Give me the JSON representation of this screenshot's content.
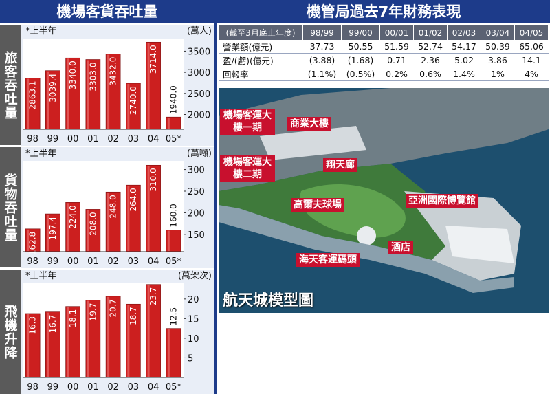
{
  "left_title": "機場客貨吞吐量",
  "right_title": "機管局過去7年財務表現",
  "chart_data": [
    {
      "type": "bar",
      "side_label": "旅客吞吐量",
      "note": "*上半年",
      "unit": "(萬人)",
      "categories": [
        "98",
        "99",
        "00",
        "01",
        "02",
        "03",
        "04",
        "05*"
      ],
      "values": [
        2863.1,
        3039.4,
        3340.0,
        3303.0,
        3432.0,
        2740.0,
        3714.0,
        1940.0
      ],
      "labels": [
        "2863.1",
        "3039.4",
        "3340.0",
        "3303.0",
        "3432.0",
        "2740.0",
        "3714.0",
        "1940.0"
      ],
      "yticks": [
        2000,
        2500,
        3000,
        3500
      ],
      "ylim": [
        1650,
        3800
      ],
      "xlabel": "",
      "ylabel": ""
    },
    {
      "type": "bar",
      "side_label": "貨物吞吐量",
      "note": "*上半年",
      "unit": "(萬噸)",
      "categories": [
        "98",
        "99",
        "00",
        "01",
        "02",
        "03",
        "04",
        "05*"
      ],
      "values": [
        162.8,
        197.4,
        224.0,
        208.0,
        248.0,
        264.0,
        310.0,
        160.0
      ],
      "labels": [
        "162.8",
        "197.4",
        "224.0",
        "208.0",
        "248.0",
        "264.0",
        "310.0",
        "160.0"
      ],
      "yticks": [
        150,
        200,
        250,
        300
      ],
      "ylim": [
        110,
        320
      ],
      "xlabel": "",
      "ylabel": ""
    },
    {
      "type": "bar",
      "side_label": "飛機升降",
      "note": "*上半年",
      "unit": "(萬架次)",
      "categories": [
        "98",
        "99",
        "00",
        "01",
        "02",
        "03",
        "04",
        "05*"
      ],
      "values": [
        16.3,
        16.7,
        18.1,
        19.7,
        20.7,
        18.7,
        23.7,
        12.5
      ],
      "labels": [
        "16.3",
        "16.7",
        "18.1",
        "19.7",
        "20.7",
        "18.7",
        "23.7",
        "12.5"
      ],
      "yticks": [
        5,
        10,
        15,
        20
      ],
      "ylim": [
        0,
        24
      ],
      "xlabel": "",
      "ylabel": ""
    }
  ],
  "finance_table": {
    "headers": [
      "(截至3月底止年度)",
      "98/99",
      "99/00",
      "00/01",
      "01/02",
      "02/03",
      "03/04",
      "04/05"
    ],
    "rows": [
      [
        "營業額(億元)",
        "37.73",
        "50.55",
        "51.59",
        "52.74",
        "54.17",
        "50.39",
        "65.06"
      ],
      [
        "盈/(虧)(億元)",
        "(3.88)",
        "(1.68)",
        "0.71",
        "2.36",
        "5.02",
        "3.86",
        "14.1"
      ],
      [
        "回報率",
        "(1.1%)",
        "(0.5%)",
        "0.2%",
        "0.6%",
        "1.4%",
        "1%",
        "4%"
      ]
    ]
  },
  "map": {
    "title": "航天城模型圖",
    "callouts": {
      "terminal1": "機場客運大樓一期",
      "commercial": "商業大樓",
      "terminal2": "機場客運大樓二期",
      "skyplaza": "翔天廊",
      "golf": "高爾夫球場",
      "expo": "亞洲國際博覽館",
      "hotel": "酒店",
      "ferry": "海天客運碼頭"
    },
    "colors": {
      "sea": "#1d4f6e",
      "land": "#3f7a3b",
      "callout": "#c8102e"
    }
  },
  "colors": {
    "bar": "#cc1f1f",
    "title_bg": "#1d3b8a",
    "side_bg": "#5a5a5a"
  }
}
